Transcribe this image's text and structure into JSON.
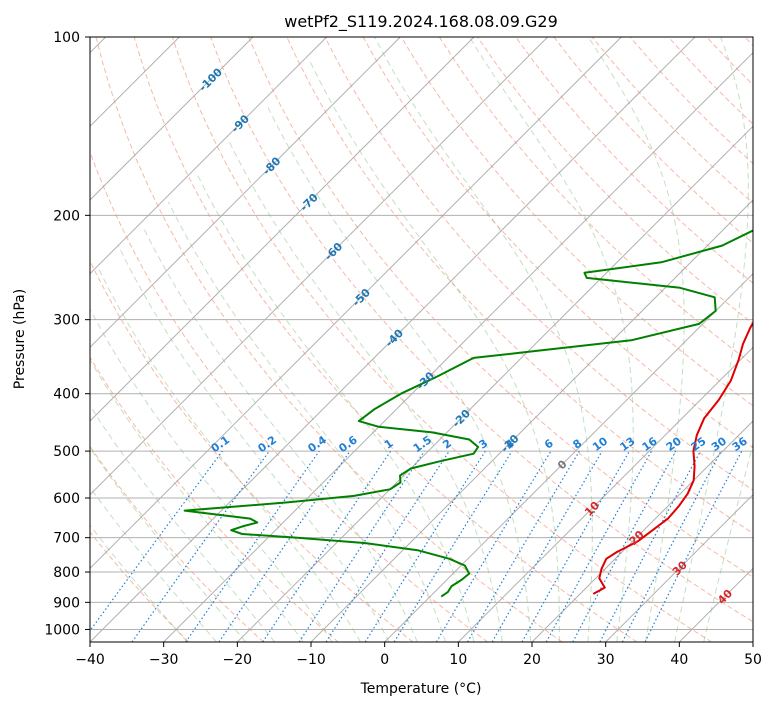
{
  "chart_data": {
    "type": "line",
    "title": "wetPf2_S119.2024.168.08.09.G29",
    "xlabel": "Temperature (°C)",
    "ylabel": "Pressure (hPa)",
    "xlim": [
      -40,
      50
    ],
    "ylim": [
      1050,
      100
    ],
    "y_scale": "log",
    "grid": true,
    "x_ticks": [
      -40,
      -30,
      -20,
      -10,
      0,
      10,
      20,
      30,
      40,
      50
    ],
    "x_tick_labels": [
      "−40",
      "−30",
      "−20",
      "−10",
      "0",
      "10",
      "20",
      "30",
      "40",
      "50"
    ],
    "y_ticks": [
      100,
      200,
      300,
      400,
      500,
      600,
      700,
      800,
      900,
      1000
    ],
    "y_tick_labels": [
      "100",
      "200",
      "300",
      "400",
      "500",
      "600",
      "700",
      "800",
      "900",
      "1000"
    ],
    "series": [
      {
        "role": "temperature",
        "color": "#e00000",
        "points": [
          [
            871,
            21.8
          ],
          [
            850,
            22.5
          ],
          [
            820,
            20.5
          ],
          [
            790,
            19.5
          ],
          [
            760,
            18.8
          ],
          [
            740,
            19.3
          ],
          [
            710,
            20.7
          ],
          [
            680,
            21.2
          ],
          [
            650,
            21.7
          ],
          [
            620,
            21.5
          ],
          [
            590,
            21.0
          ],
          [
            560,
            20.0
          ],
          [
            530,
            18.2
          ],
          [
            500,
            16.0
          ],
          [
            470,
            14.3
          ],
          [
            440,
            13.0
          ],
          [
            410,
            12.5
          ],
          [
            380,
            11.5
          ],
          [
            350,
            9.7
          ],
          [
            330,
            8.2
          ],
          [
            310,
            7.0
          ],
          [
            290,
            6.0
          ],
          [
            272,
            6.5
          ],
          [
            255,
            7.5
          ],
          [
            240,
            7.8
          ],
          [
            225,
            6.8
          ],
          [
            210,
            6.4
          ],
          [
            195,
            4.8
          ],
          [
            180,
            4.2
          ],
          [
            165,
            4.2
          ],
          [
            155,
            5.0
          ],
          [
            145,
            5.5
          ],
          [
            135,
            5.3
          ],
          [
            125,
            5.8
          ],
          [
            118,
            8.0
          ],
          [
            112,
            10.0
          ],
          [
            106,
            10.0
          ],
          [
            100,
            9.0
          ]
        ]
      },
      {
        "role": "dewpoint",
        "color": "#008000",
        "points": [
          [
            880,
            1.5
          ],
          [
            865,
            1.8
          ],
          [
            845,
            1.5
          ],
          [
            825,
            2.0
          ],
          [
            805,
            2.2
          ],
          [
            780,
            0.5
          ],
          [
            760,
            -2.5
          ],
          [
            735,
            -8.0
          ],
          [
            715,
            -16.0
          ],
          [
            700,
            -26.0
          ],
          [
            690,
            -34.0
          ],
          [
            680,
            -36.0
          ],
          [
            670,
            -35.0
          ],
          [
            660,
            -33.5
          ],
          [
            650,
            -35.0
          ],
          [
            640,
            -40.0
          ],
          [
            630,
            -45.0
          ],
          [
            610,
            -32.0
          ],
          [
            595,
            -24.0
          ],
          [
            580,
            -20.0
          ],
          [
            565,
            -19.5
          ],
          [
            550,
            -20.5
          ],
          [
            535,
            -20.0
          ],
          [
            520,
            -17.0
          ],
          [
            505,
            -13.5
          ],
          [
            492,
            -13.8
          ],
          [
            478,
            -16.0
          ],
          [
            465,
            -22.0
          ],
          [
            455,
            -30.0
          ],
          [
            445,
            -33.5
          ],
          [
            425,
            -33.0
          ],
          [
            400,
            -31.5
          ],
          [
            375,
            -29.0
          ],
          [
            348,
            -26.5
          ],
          [
            340,
            -20.0
          ],
          [
            325,
            -7.5
          ],
          [
            305,
            -0.5
          ],
          [
            290,
            0.0
          ],
          [
            275,
            -2.0
          ],
          [
            265,
            -8.0
          ],
          [
            255,
            -22.0
          ],
          [
            250,
            -23.0
          ],
          [
            240,
            -14.0
          ],
          [
            225,
            -8.0
          ],
          [
            210,
            -5.5
          ],
          [
            195,
            -4.0
          ],
          [
            180,
            -3.0
          ],
          [
            170,
            -3.5
          ],
          [
            162,
            -5.5
          ],
          [
            150,
            -6.5
          ],
          [
            140,
            -5.5
          ],
          [
            130,
            -5.0
          ],
          [
            120,
            -6.0
          ],
          [
            114,
            -6.0
          ],
          [
            108,
            -2.0
          ],
          [
            103,
            1.0
          ],
          [
            100,
            2.5
          ]
        ]
      }
    ],
    "dry_adiabat_labels": [
      "-100",
      "-90",
      "-80",
      "-70",
      "-60",
      "-50",
      "-40",
      "-30",
      "-20",
      "-10",
      "0",
      "10",
      "20",
      "30",
      "40"
    ],
    "mixing_ratio_labels": [
      "0.1",
      "0.2",
      "0.4",
      "0.6",
      "1",
      "1.5",
      "2",
      "3",
      "4",
      "6",
      "8",
      "10",
      "13",
      "16",
      "20",
      "25",
      "30",
      "36"
    ],
    "colors": {
      "temperature": "#e00000",
      "dewpoint": "#008000",
      "grid": "#b0b0b0",
      "dry_adiabat": "#f08a6a",
      "moist_adiabat": "#7ab87a",
      "mixing_ratio": "#1f7fd6",
      "isotherm_label_cold": "#1f77b4",
      "isotherm_label_warm": "#d62728",
      "isotherm_label_zero": "#777777"
    }
  }
}
